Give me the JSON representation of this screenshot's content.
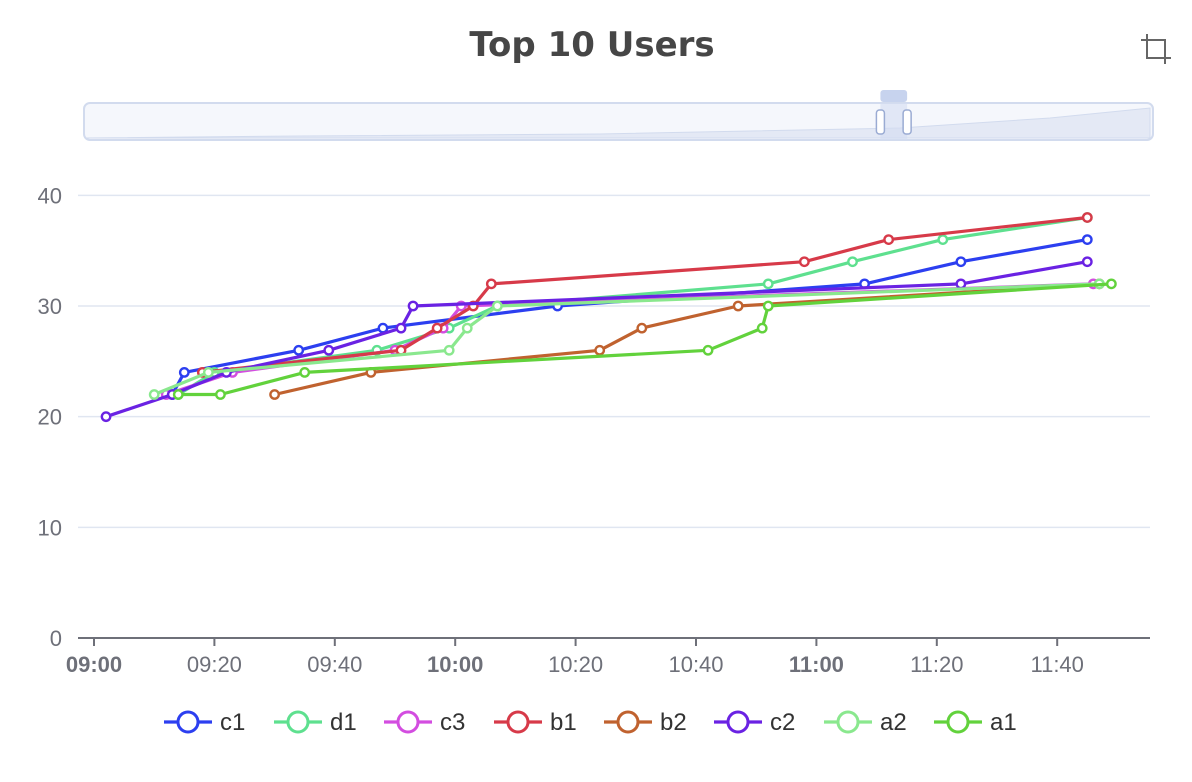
{
  "chart_data": {
    "type": "line",
    "title": "Top 10 Users",
    "xlabel": "",
    "ylabel": "",
    "x_range": [
      "09:00",
      "11:55"
    ],
    "ylim": [
      0,
      45
    ],
    "y_ticks": [
      0,
      10,
      20,
      30,
      40
    ],
    "x_ticks": [
      {
        "time": "09:00",
        "label": "09:00",
        "bold": true
      },
      {
        "time": "09:20",
        "label": "09:20",
        "bold": false
      },
      {
        "time": "09:40",
        "label": "09:40",
        "bold": false
      },
      {
        "time": "10:00",
        "label": "10:00",
        "bold": true
      },
      {
        "time": "10:20",
        "label": "10:20",
        "bold": false
      },
      {
        "time": "10:40",
        "label": "10:40",
        "bold": false
      },
      {
        "time": "11:00",
        "label": "11:00",
        "bold": true
      },
      {
        "time": "11:20",
        "label": "11:20",
        "bold": false
      },
      {
        "time": "11:40",
        "label": "11:40",
        "bold": false
      }
    ],
    "grid": true,
    "legend_position": "bottom",
    "series": [
      {
        "name": "c1",
        "color": "#2c3ff0",
        "points": [
          {
            "x": "09:13",
            "y": 22
          },
          {
            "x": "09:15",
            "y": 24
          },
          {
            "x": "09:34",
            "y": 26
          },
          {
            "x": "09:48",
            "y": 28
          },
          {
            "x": "10:17",
            "y": 30
          },
          {
            "x": "11:08",
            "y": 32
          },
          {
            "x": "11:24",
            "y": 34
          },
          {
            "x": "11:45",
            "y": 36
          }
        ]
      },
      {
        "name": "d1",
        "color": "#5ee08f",
        "points": [
          {
            "x": "09:14",
            "y": 22
          },
          {
            "x": "09:20",
            "y": 24
          },
          {
            "x": "09:47",
            "y": 26
          },
          {
            "x": "09:59",
            "y": 28
          },
          {
            "x": "10:07",
            "y": 30
          },
          {
            "x": "10:52",
            "y": 32
          },
          {
            "x": "11:06",
            "y": 34
          },
          {
            "x": "11:21",
            "y": 36
          },
          {
            "x": "11:45",
            "y": 38
          }
        ]
      },
      {
        "name": "c3",
        "color": "#d34de0",
        "points": [
          {
            "x": "09:12",
            "y": 22
          },
          {
            "x": "09:23",
            "y": 24
          },
          {
            "x": "09:50",
            "y": 26
          },
          {
            "x": "09:58",
            "y": 28
          },
          {
            "x": "10:01",
            "y": 30
          },
          {
            "x": "11:46",
            "y": 32
          }
        ]
      },
      {
        "name": "b1",
        "color": "#d73a49",
        "points": [
          {
            "x": "09:18",
            "y": 24
          },
          {
            "x": "09:51",
            "y": 26
          },
          {
            "x": "09:57",
            "y": 28
          },
          {
            "x": "10:03",
            "y": 30
          },
          {
            "x": "10:06",
            "y": 32
          },
          {
            "x": "10:58",
            "y": 34
          },
          {
            "x": "11:12",
            "y": 36
          },
          {
            "x": "11:45",
            "y": 38
          }
        ]
      },
      {
        "name": "b2",
        "color": "#c0622f",
        "points": [
          {
            "x": "09:30",
            "y": 22
          },
          {
            "x": "09:46",
            "y": 24
          },
          {
            "x": "10:24",
            "y": 26
          },
          {
            "x": "10:31",
            "y": 28
          },
          {
            "x": "10:47",
            "y": 30
          },
          {
            "x": "11:47",
            "y": 32
          }
        ]
      },
      {
        "name": "c2",
        "color": "#6a22e3",
        "points": [
          {
            "x": "09:02",
            "y": 20
          },
          {
            "x": "09:13",
            "y": 22
          },
          {
            "x": "09:22",
            "y": 24
          },
          {
            "x": "09:39",
            "y": 26
          },
          {
            "x": "09:51",
            "y": 28
          },
          {
            "x": "09:53",
            "y": 30
          },
          {
            "x": "11:24",
            "y": 32
          },
          {
            "x": "11:45",
            "y": 34
          }
        ]
      },
      {
        "name": "a2",
        "color": "#8ae88e",
        "points": [
          {
            "x": "09:10",
            "y": 22
          },
          {
            "x": "09:19",
            "y": 24
          },
          {
            "x": "09:59",
            "y": 26
          },
          {
            "x": "10:02",
            "y": 28
          },
          {
            "x": "10:07",
            "y": 30
          },
          {
            "x": "11:47",
            "y": 32
          }
        ]
      },
      {
        "name": "a1",
        "color": "#62d23c",
        "points": [
          {
            "x": "09:14",
            "y": 22
          },
          {
            "x": "09:21",
            "y": 22
          },
          {
            "x": "09:35",
            "y": 24
          },
          {
            "x": "10:42",
            "y": 26
          },
          {
            "x": "10:51",
            "y": 28
          },
          {
            "x": "10:52",
            "y": 30
          },
          {
            "x": "11:49",
            "y": 32
          }
        ]
      }
    ]
  },
  "toolbox": {
    "icon": "crop-icon"
  },
  "datazoom": {
    "start_fraction": 0.745,
    "end_fraction": 0.77
  }
}
